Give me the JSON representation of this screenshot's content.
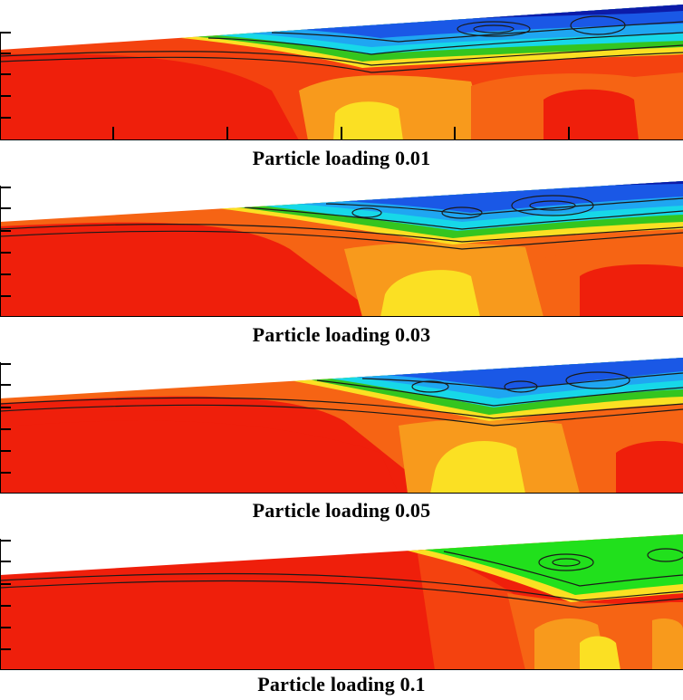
{
  "figure": {
    "panels": [
      {
        "caption": "Particle loading 0.01"
      },
      {
        "caption": "Particle loading 0.03"
      },
      {
        "caption": "Particle loading 0.05"
      },
      {
        "caption": "Particle loading 0.1"
      }
    ]
  },
  "colors": {
    "red": "#ef1f0b",
    "red_orange": "#f4420f",
    "orange": "#f66414",
    "light_orange": "#f89a1c",
    "yellow": "#fbe023",
    "pale_yellow": "#fff23a",
    "green": "#34c51f",
    "bright_green": "#21e01c",
    "cyan": "#17d8e8",
    "light_blue": "#1fa6f2",
    "blue": "#1a58e6",
    "dark_blue": "#0c1ba8",
    "line": "#1a1a1a"
  }
}
